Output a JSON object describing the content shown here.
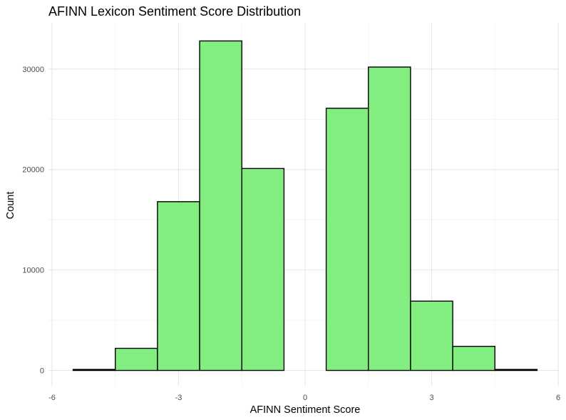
{
  "chart_data": {
    "type": "bar",
    "title": "AFINN Lexicon Sentiment Score Distribution",
    "xlabel": "AFINN Sentiment Score",
    "ylabel": "Count",
    "bin_width": 1,
    "x": [
      -5,
      -4,
      -3,
      -2,
      -1,
      0,
      1,
      2,
      3,
      4,
      5
    ],
    "values": [
      100,
      2200,
      16800,
      32800,
      20100,
      0,
      26100,
      30200,
      6900,
      2400,
      100
    ],
    "xlim": [
      -6,
      6
    ],
    "ylim": [
      0,
      34000
    ],
    "x_ticks": [
      -6,
      -3,
      0,
      3,
      6
    ],
    "y_ticks": [
      0,
      10000,
      20000,
      30000
    ],
    "x_tick_labels": [
      "-6",
      "-3",
      "0",
      "3",
      "6"
    ],
    "y_tick_labels": [
      "0",
      "10000",
      "20000",
      "30000"
    ],
    "bar_color": "#82ee80",
    "edge_color": "#000000",
    "grid": true
  }
}
